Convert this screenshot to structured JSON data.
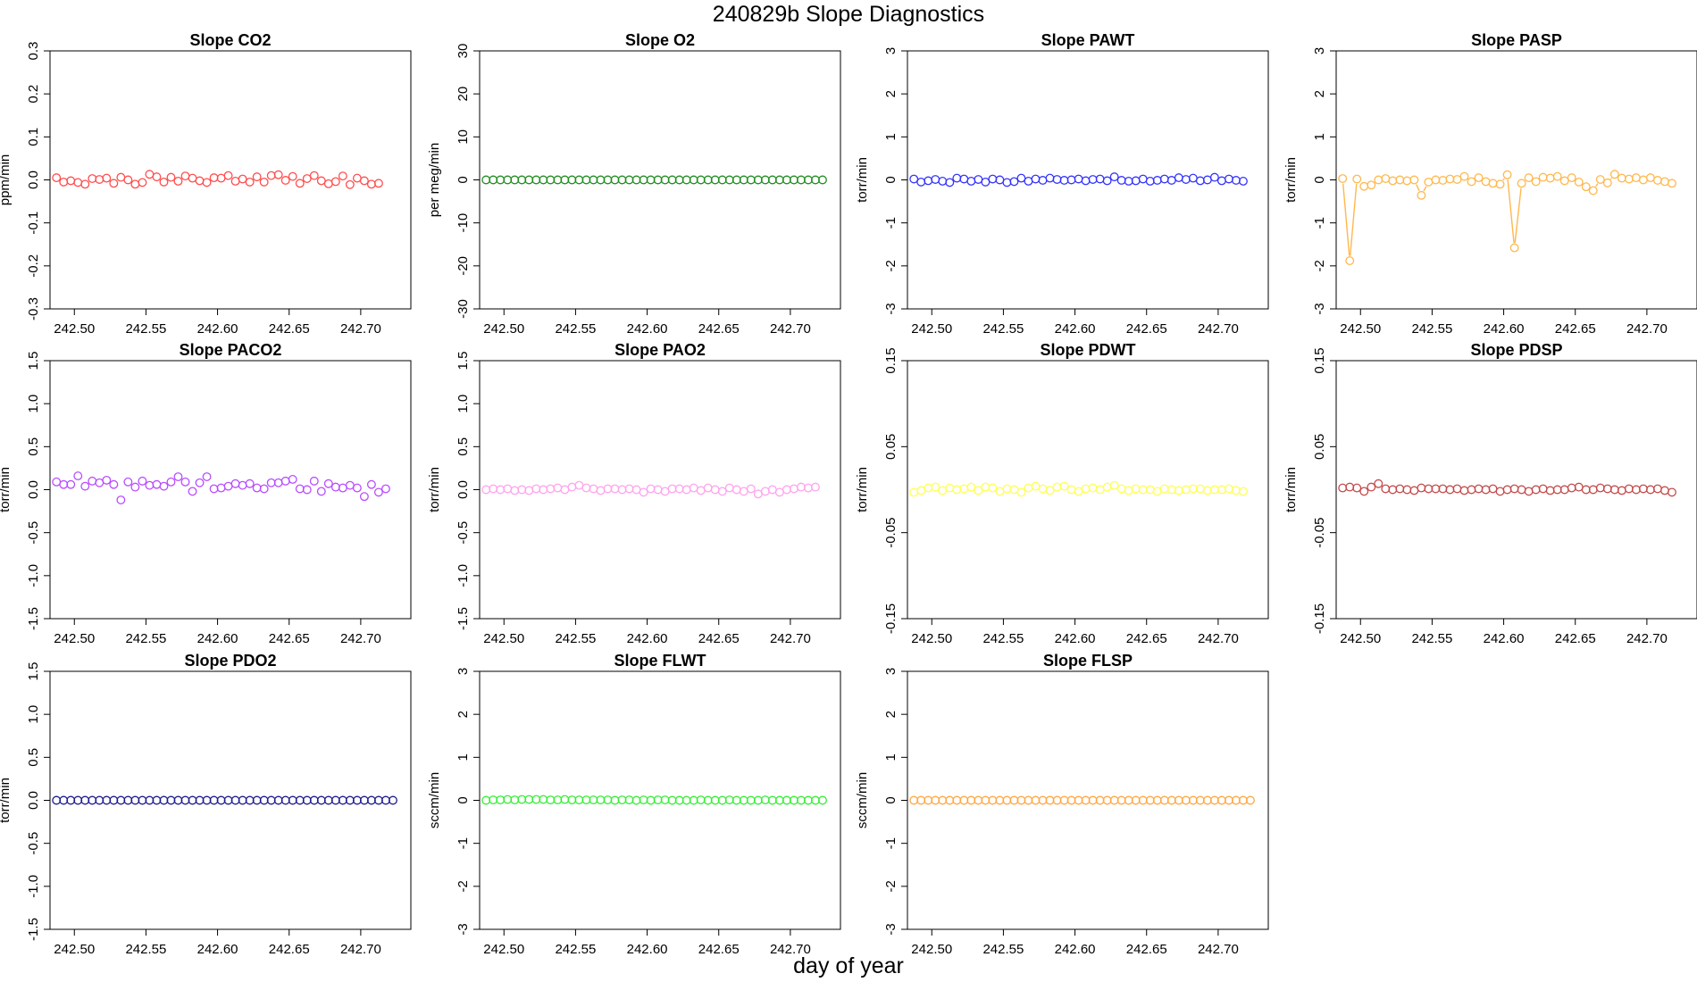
{
  "figure": {
    "title": "240829b   Slope Diagnostics",
    "xlabel": "day of year"
  },
  "chart_data": [
    {
      "type": "scatter",
      "title": "Slope CO2",
      "ylabel": "ppm/min",
      "color": "#ff4d4d",
      "connect": false,
      "xlim": [
        242.483,
        242.735
      ],
      "ylim": [
        -0.3,
        0.3
      ],
      "xticks": [
        "242.50",
        "242.55",
        "242.60",
        "242.65",
        "242.70"
      ],
      "yticks": [
        "-0.3",
        "-0.2",
        "-0.1",
        "0.0",
        "0.1",
        "0.2",
        "0.3"
      ],
      "x_start": 242.4875,
      "x_step": 0.005,
      "y": [
        0.005,
        -0.005,
        -0.002,
        -0.006,
        -0.01,
        0.003,
        0.001,
        0.004,
        -0.008,
        0.006,
        0.0,
        -0.01,
        -0.006,
        0.013,
        0.007,
        -0.005,
        0.006,
        -0.003,
        0.009,
        0.004,
        -0.002,
        -0.006,
        0.005,
        0.004,
        0.01,
        -0.003,
        0.002,
        -0.005,
        0.007,
        -0.005,
        0.01,
        0.012,
        -0.001,
        0.008,
        -0.008,
        0.003,
        0.01,
        -0.002,
        -0.009,
        -0.004,
        0.009,
        -0.011,
        0.004,
        -0.002,
        -0.01,
        -0.008
      ]
    },
    {
      "type": "scatter",
      "title": "Slope O2",
      "ylabel": "per meg/min",
      "color": "#1e8c1e",
      "connect": false,
      "xlim": [
        242.483,
        242.735
      ],
      "ylim": [
        -30,
        30
      ],
      "xticks": [
        "242.50",
        "242.55",
        "242.60",
        "242.65",
        "242.70"
      ],
      "yticks": [
        "-30",
        "-20",
        "-10",
        "0",
        "10",
        "20",
        "30"
      ],
      "x_start": 242.4875,
      "x_step": 0.005,
      "y": [
        0,
        0,
        0,
        0,
        0,
        0,
        0,
        0,
        0,
        0,
        0,
        0,
        0,
        0,
        0,
        0,
        0,
        0,
        0,
        0,
        0,
        0,
        0,
        0,
        0,
        0,
        0,
        0,
        0,
        0,
        0,
        0,
        0,
        0,
        0,
        0,
        0,
        0,
        0,
        0,
        0,
        0,
        0,
        0,
        0,
        0,
        0,
        0
      ]
    },
    {
      "type": "scatter",
      "title": "Slope PAWT",
      "ylabel": "torr/min",
      "color": "#3333ff",
      "connect": false,
      "xlim": [
        242.483,
        242.735
      ],
      "ylim": [
        -3,
        3
      ],
      "xticks": [
        "242.50",
        "242.55",
        "242.60",
        "242.65",
        "242.70"
      ],
      "yticks": [
        "-3",
        "-2",
        "-1",
        "0",
        "1",
        "2",
        "3"
      ],
      "x_start": 242.4875,
      "x_step": 0.005,
      "y": [
        0.02,
        -0.05,
        -0.02,
        0.01,
        -0.03,
        -0.06,
        0.04,
        0.02,
        -0.03,
        0.01,
        -0.05,
        0.02,
        0.0,
        -0.06,
        -0.04,
        0.04,
        -0.03,
        0.02,
        -0.01,
        0.04,
        0.01,
        -0.01,
        0.0,
        0.02,
        -0.02,
        0.01,
        0.02,
        -0.02,
        0.07,
        -0.01,
        -0.03,
        -0.02,
        0.02,
        -0.03,
        -0.01,
        0.02,
        -0.01,
        0.05,
        0.01,
        0.04,
        -0.02,
        0.0,
        0.06,
        -0.02,
        0.02,
        -0.01,
        -0.03
      ]
    },
    {
      "type": "line",
      "title": "Slope PASP",
      "ylabel": "torr/min",
      "color": "#ffb84d",
      "connect": true,
      "xlim": [
        242.483,
        242.735
      ],
      "ylim": [
        -3,
        3
      ],
      "xticks": [
        "242.50",
        "242.55",
        "242.60",
        "242.65",
        "242.70"
      ],
      "yticks": [
        "-3",
        "-2",
        "-1",
        "0",
        "1",
        "2",
        "3"
      ],
      "x_start": 242.4875,
      "x_step": 0.005,
      "y": [
        0.03,
        -1.88,
        0.02,
        -0.15,
        -0.12,
        0.0,
        0.03,
        -0.02,
        0.0,
        -0.02,
        0.0,
        -0.36,
        -0.05,
        0.0,
        -0.01,
        0.02,
        0.01,
        0.08,
        -0.04,
        0.05,
        -0.04,
        -0.08,
        -0.1,
        0.12,
        -1.58,
        -0.08,
        0.05,
        -0.04,
        0.06,
        0.04,
        0.08,
        -0.02,
        0.05,
        -0.05,
        -0.16,
        -0.25,
        0.01,
        -0.07,
        0.13,
        0.04,
        0.02,
        0.05,
        0.0,
        0.05,
        -0.01,
        -0.04,
        -0.08
      ]
    },
    {
      "type": "scatter",
      "title": "Slope PACO2",
      "ylabel": "torr/min",
      "color": "#b84dff",
      "connect": false,
      "xlim": [
        242.483,
        242.735
      ],
      "ylim": [
        -1.5,
        1.5
      ],
      "xticks": [
        "242.50",
        "242.55",
        "242.60",
        "242.65",
        "242.70"
      ],
      "yticks": [
        "-1.5",
        "-1.0",
        "-0.5",
        "0.0",
        "0.5",
        "1.0",
        "1.5"
      ],
      "x_start": 242.4875,
      "x_step": 0.005,
      "y": [
        0.09,
        0.06,
        0.06,
        0.16,
        0.04,
        0.1,
        0.08,
        0.11,
        0.06,
        -0.12,
        0.09,
        0.03,
        0.1,
        0.05,
        0.06,
        0.04,
        0.09,
        0.15,
        0.09,
        -0.02,
        0.08,
        0.15,
        0.01,
        0.02,
        0.04,
        0.07,
        0.05,
        0.07,
        0.02,
        0.01,
        0.08,
        0.08,
        0.1,
        0.12,
        0.01,
        0.0,
        0.1,
        -0.02,
        0.07,
        0.03,
        0.02,
        0.05,
        0.02,
        -0.08,
        0.06,
        -0.03,
        0.01
      ]
    },
    {
      "type": "scatter",
      "title": "Slope PAO2",
      "ylabel": "torr/min",
      "color": "#ffa3ee",
      "connect": false,
      "xlim": [
        242.483,
        242.735
      ],
      "ylim": [
        -1.5,
        1.5
      ],
      "xticks": [
        "242.50",
        "242.55",
        "242.60",
        "242.65",
        "242.70"
      ],
      "yticks": [
        "-1.5",
        "-1.0",
        "-0.5",
        "0.0",
        "0.5",
        "1.0",
        "1.5"
      ],
      "x_start": 242.4875,
      "x_step": 0.005,
      "y": [
        0.0,
        0.01,
        0.0,
        0.01,
        -0.01,
        0.0,
        -0.01,
        0.01,
        0.0,
        0.01,
        0.02,
        0.0,
        0.03,
        0.05,
        0.02,
        0.01,
        -0.01,
        0.01,
        0.01,
        0.0,
        0.01,
        0.0,
        -0.03,
        0.01,
        0.0,
        -0.02,
        0.01,
        0.01,
        0.0,
        0.02,
        -0.01,
        0.02,
        0.0,
        -0.02,
        0.02,
        0.0,
        -0.02,
        0.01,
        -0.05,
        -0.02,
        0.0,
        -0.03,
        0.0,
        0.01,
        0.03,
        0.02,
        0.03
      ]
    },
    {
      "type": "scatter",
      "title": "Slope PDWT",
      "ylabel": "torr/min",
      "color": "#ffff55",
      "connect": false,
      "xlim": [
        242.483,
        242.735
      ],
      "ylim": [
        -0.15,
        0.15
      ],
      "xticks": [
        "242.50",
        "242.55",
        "242.60",
        "242.65",
        "242.70"
      ],
      "yticks": [
        "-0.15",
        "-0.05",
        "0.05",
        "0.15"
      ],
      "x_start": 242.4875,
      "x_step": 0.005,
      "y": [
        -0.003,
        -0.001,
        0.002,
        0.003,
        -0.001,
        0.002,
        0.0,
        0.001,
        0.003,
        -0.001,
        0.003,
        0.002,
        -0.002,
        0.001,
        0.0,
        -0.003,
        0.002,
        0.004,
        0.001,
        -0.001,
        0.003,
        0.004,
        0.0,
        -0.002,
        0.001,
        0.002,
        0.0,
        0.003,
        0.005,
        0.001,
        -0.001,
        0.001,
        0.0,
        0.0,
        -0.002,
        0.001,
        0.0,
        -0.001,
        0.0,
        0.001,
        0.001,
        -0.001,
        0.0,
        0.0,
        0.001,
        -0.001,
        -0.002
      ]
    },
    {
      "type": "scatter",
      "title": "Slope PDSP",
      "ylabel": "torr/min",
      "color": "#c44a4a",
      "connect": false,
      "xlim": [
        242.483,
        242.735
      ],
      "ylim": [
        -0.15,
        0.15
      ],
      "xticks": [
        "242.50",
        "242.55",
        "242.60",
        "242.65",
        "242.70"
      ],
      "yticks": [
        "-0.15",
        "-0.05",
        "0.05",
        "0.15"
      ],
      "x_start": 242.4875,
      "x_step": 0.005,
      "y": [
        0.002,
        0.003,
        0.002,
        -0.002,
        0.003,
        0.007,
        0.001,
        0.0,
        0.001,
        0.0,
        -0.001,
        0.002,
        0.001,
        0.001,
        0.001,
        0.0,
        0.001,
        -0.001,
        0.0,
        0.001,
        0.0,
        0.001,
        -0.002,
        0.0,
        0.001,
        0.0,
        -0.002,
        0.0,
        0.001,
        -0.001,
        0.0,
        0.0,
        0.002,
        0.003,
        0.0,
        0.0,
        0.002,
        0.001,
        0.0,
        -0.001,
        0.001,
        0.0,
        0.001,
        0.0,
        0.001,
        -0.001,
        -0.003
      ]
    },
    {
      "type": "scatter",
      "title": "Slope PDO2",
      "ylabel": "torr/min",
      "color": "#1a1a8c",
      "connect": false,
      "xlim": [
        242.483,
        242.735
      ],
      "ylim": [
        -1.5,
        1.5
      ],
      "xticks": [
        "242.50",
        "242.55",
        "242.60",
        "242.65",
        "242.70"
      ],
      "yticks": [
        "-1.5",
        "-1.0",
        "-0.5",
        "0.0",
        "0.5",
        "1.0",
        "1.5"
      ],
      "x_start": 242.4875,
      "x_step": 0.005,
      "y": [
        0,
        0,
        0,
        0,
        0,
        0,
        0,
        0,
        0,
        0,
        0,
        0,
        0,
        0,
        0,
        0,
        0,
        0,
        0,
        0,
        0,
        0,
        0,
        0,
        0,
        0,
        0,
        0,
        0,
        0,
        0,
        0,
        0,
        0,
        0,
        0,
        0,
        0,
        0,
        0,
        0,
        0,
        0,
        0,
        0,
        0,
        0,
        0
      ]
    },
    {
      "type": "scatter",
      "title": "Slope FLWT",
      "ylabel": "sccm/min",
      "color": "#33ee33",
      "connect": false,
      "xlim": [
        242.483,
        242.735
      ],
      "ylim": [
        -3,
        3
      ],
      "xticks": [
        "242.50",
        "242.55",
        "242.60",
        "242.65",
        "242.70"
      ],
      "yticks": [
        "-3",
        "-2",
        "-1",
        "0",
        "1",
        "2",
        "3"
      ],
      "x_start": 242.4875,
      "x_step": 0.005,
      "y": [
        0,
        0.01,
        0.01,
        0.02,
        0.01,
        0.02,
        0.02,
        0.02,
        0.02,
        0.01,
        0.01,
        0.02,
        0.01,
        0.01,
        0.01,
        0.01,
        0.01,
        0.01,
        0.0,
        0.01,
        0.01,
        0.0,
        0.01,
        0.0,
        0.01,
        0.01,
        0.0,
        0.0,
        0.0,
        0.0,
        0.01,
        0.0,
        0.0,
        0.0,
        0.01,
        0.0,
        0.0,
        0.0,
        0.0,
        0.01,
        0.0,
        0.0,
        0.0,
        0.0,
        0.0,
        0.0,
        0.0,
        0.0
      ]
    },
    {
      "type": "scatter",
      "title": "Slope FLSP",
      "ylabel": "sccm/min",
      "color": "#ffa640",
      "connect": false,
      "xlim": [
        242.483,
        242.735
      ],
      "ylim": [
        -3,
        3
      ],
      "xticks": [
        "242.50",
        "242.55",
        "242.60",
        "242.65",
        "242.70"
      ],
      "yticks": [
        "-3",
        "-2",
        "-1",
        "0",
        "1",
        "2",
        "3"
      ],
      "x_start": 242.4875,
      "x_step": 0.005,
      "y": [
        0,
        0,
        0,
        0,
        0,
        0,
        0,
        0,
        0,
        0,
        0,
        0,
        0,
        0,
        0,
        0,
        0,
        0,
        0,
        0,
        0,
        0,
        0,
        0,
        0,
        0,
        0,
        0,
        0,
        0,
        0,
        0,
        0,
        0,
        0,
        0,
        0,
        0,
        0,
        0,
        0,
        0,
        0,
        0,
        0,
        0,
        0,
        0
      ]
    }
  ]
}
